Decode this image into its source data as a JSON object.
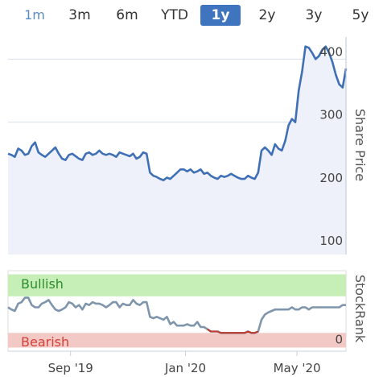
{
  "range_tabs": [
    "1m",
    "3m",
    "6m",
    "YTD",
    "1y",
    "2y",
    "3y",
    "5y"
  ],
  "active_tab": "1y",
  "colors": {
    "price_line": "#3f6fb5",
    "price_fill": "#eef1f9",
    "rank_line": "#7f95ab",
    "bearish_line": "#c0392b",
    "bullish_band": "#c6efb7",
    "bearish_band": "#f3c9c6",
    "bullish_text": "#2e8b2e",
    "bearish_text": "#d2413a",
    "active_tab_bg": "#3f74bf"
  },
  "chart_data": [
    {
      "type": "line",
      "ylabel": "Share Price",
      "ylim": [
        90,
        435
      ],
      "y_ticks": [
        100,
        200,
        300,
        400
      ],
      "x_ticks": [
        "Sep '19",
        "Jan '20",
        "May '20"
      ],
      "grid": true,
      "x_index_range": [
        0,
        100
      ],
      "x_tick_positions": [
        18.5,
        52.5,
        85.5
      ],
      "series": [
        {
          "values": [
            250,
            248,
            245,
            258,
            255,
            248,
            250,
            262,
            268,
            252,
            248,
            245,
            250,
            255,
            260,
            250,
            242,
            240,
            248,
            250,
            246,
            242,
            240,
            250,
            252,
            248,
            250,
            255,
            250,
            248,
            250,
            248,
            245,
            252,
            250,
            248,
            246,
            250,
            242,
            245,
            252,
            250,
            220,
            215,
            213,
            210,
            208,
            212,
            210,
            215,
            220,
            225,
            225,
            222,
            225,
            220,
            222,
            225,
            218,
            220,
            215,
            212,
            210,
            215,
            213,
            215,
            218,
            215,
            212,
            210,
            210,
            215,
            212,
            210,
            220,
            255,
            260,
            255,
            248,
            265,
            258,
            255,
            270,
            295,
            305,
            300,
            350,
            380,
            420,
            418,
            410,
            400,
            405,
            415,
            420,
            410,
            395,
            375,
            360,
            355,
            385
          ]
        }
      ]
    },
    {
      "type": "line",
      "ylabel": "StockRank",
      "ylim": [
        -5,
        105
      ],
      "y_ticks": [
        0
      ],
      "bands": [
        {
          "label": "Bullish",
          "from": 70,
          "to": 100
        },
        {
          "label": "Bearish",
          "from": 0,
          "to": 20
        }
      ],
      "series": [
        {
          "values": [
            55,
            52,
            50,
            60,
            62,
            68,
            68,
            58,
            55,
            55,
            60,
            62,
            65,
            58,
            52,
            50,
            52,
            55,
            62,
            60,
            55,
            58,
            52,
            60,
            58,
            62,
            60,
            60,
            58,
            55,
            58,
            62,
            62,
            55,
            60,
            58,
            58,
            65,
            60,
            58,
            62,
            62,
            42,
            40,
            42,
            40,
            38,
            42,
            32,
            35,
            30,
            30,
            30,
            32,
            30,
            30,
            35,
            28,
            28,
            25,
            22,
            22,
            22,
            20,
            20,
            20,
            20,
            20,
            20,
            20,
            20,
            22,
            20,
            20,
            22,
            38,
            45,
            48,
            50,
            52,
            52,
            52,
            52,
            52,
            55,
            52,
            52,
            55,
            55,
            52,
            55,
            55,
            55,
            55,
            55,
            55,
            55,
            55,
            55,
            58,
            58
          ],
          "bearish_range": [
            59,
            74
          ]
        }
      ]
    }
  ]
}
